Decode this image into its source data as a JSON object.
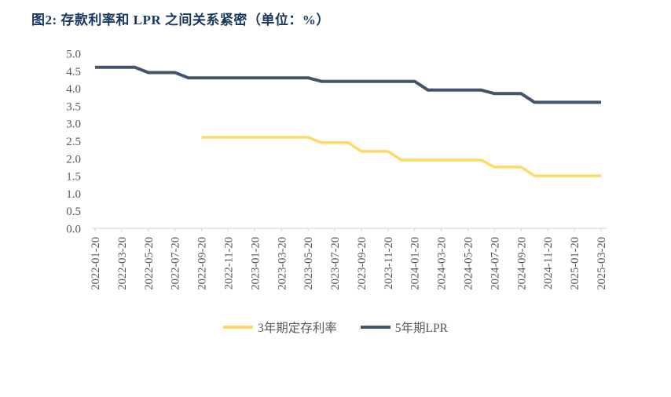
{
  "title": "图2:  存款利率和 LPR 之间关系紧密（单位：%）",
  "colors": {
    "title_text": "#17375E",
    "deposit_line": "#FFD966",
    "lpr_line": "#44546A",
    "axis_line": "#D9D9D9",
    "axis_label_text": "#595959",
    "background": "#FFFFFF"
  },
  "chart_data": {
    "type": "line",
    "title": "存款利率和 LPR 之间关系紧密",
    "unit": "%",
    "grid": false,
    "legend_position": "bottom",
    "ylim": [
      0.0,
      5.0
    ],
    "y_tick_labels": [
      "0.0",
      "0.5",
      "1.0",
      "1.5",
      "2.0",
      "2.5",
      "3.0",
      "3.5",
      "4.0",
      "4.5",
      "5.0"
    ],
    "x_tick_every": 2,
    "x": [
      "2022-01-20",
      "2022-02-20",
      "2022-03-20",
      "2022-04-20",
      "2022-05-20",
      "2022-06-20",
      "2022-07-20",
      "2022-08-20",
      "2022-09-20",
      "2022-10-20",
      "2022-11-20",
      "2022-12-20",
      "2023-01-20",
      "2023-02-20",
      "2023-03-20",
      "2023-04-20",
      "2023-05-20",
      "2023-06-20",
      "2023-07-20",
      "2023-08-20",
      "2023-09-20",
      "2023-10-20",
      "2023-11-20",
      "2023-12-20",
      "2024-01-20",
      "2024-02-20",
      "2024-03-20",
      "2024-04-20",
      "2024-05-20",
      "2024-06-20",
      "2024-07-20",
      "2024-08-20",
      "2024-09-20",
      "2024-10-20",
      "2024-11-20",
      "2024-12-20",
      "2025-01-20",
      "2025-02-20",
      "2025-03-20"
    ],
    "x_tick_labels": [
      "2022-01-20",
      "2022-03-20",
      "2022-05-20",
      "2022-07-20",
      "2022-09-20",
      "2022-11-20",
      "2023-01-20",
      "2023-03-20",
      "2023-05-20",
      "2023-07-20",
      "2023-09-20",
      "2023-11-20",
      "2024-01-20",
      "2024-03-20",
      "2024-05-20",
      "2024-07-20",
      "2024-09-20",
      "2024-11-20",
      "2025-01-20",
      "2025-03-20"
    ],
    "series": [
      {
        "name": "3年期定存利率",
        "color": "#FFD966",
        "values": [
          null,
          null,
          null,
          null,
          null,
          null,
          null,
          null,
          2.6,
          2.6,
          2.6,
          2.6,
          2.6,
          2.6,
          2.6,
          2.6,
          2.6,
          2.45,
          2.45,
          2.45,
          2.2,
          2.2,
          2.2,
          1.95,
          1.95,
          1.95,
          1.95,
          1.95,
          1.95,
          1.95,
          1.75,
          1.75,
          1.75,
          1.5,
          1.5,
          1.5,
          1.5,
          1.5,
          1.5
        ]
      },
      {
        "name": "5年期LPR",
        "color": "#44546A",
        "values": [
          4.6,
          4.6,
          4.6,
          4.6,
          4.45,
          4.45,
          4.45,
          4.3,
          4.3,
          4.3,
          4.3,
          4.3,
          4.3,
          4.3,
          4.3,
          4.3,
          4.3,
          4.2,
          4.2,
          4.2,
          4.2,
          4.2,
          4.2,
          4.2,
          4.2,
          3.95,
          3.95,
          3.95,
          3.95,
          3.95,
          3.85,
          3.85,
          3.85,
          3.6,
          3.6,
          3.6,
          3.6,
          3.6,
          3.6
        ]
      }
    ]
  }
}
